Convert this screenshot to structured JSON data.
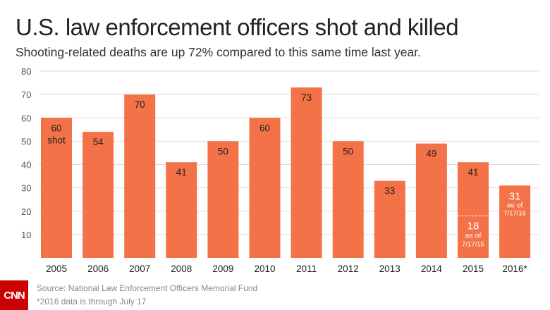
{
  "title": "U.S. law enforcement officers shot and killed",
  "subtitle": "Shooting-related deaths are up 72% compared to this same time last year.",
  "source": "Source: National Law Enforcement Officers Memorial Fund",
  "note": "*2016 data is through July 17",
  "logo": "CNN",
  "colors": {
    "bar": "#f47247",
    "logo": "#cc0000"
  },
  "chart_data": {
    "type": "bar",
    "categories": [
      "2005",
      "2006",
      "2007",
      "2008",
      "2009",
      "2010",
      "2011",
      "2012",
      "2013",
      "2014",
      "2015",
      "2016*"
    ],
    "values": [
      60,
      54,
      70,
      41,
      50,
      60,
      73,
      50,
      33,
      49,
      41,
      31
    ],
    "data_labels": [
      "60",
      "54",
      "70",
      "41",
      "50",
      "60",
      "73",
      "50",
      "33",
      "49",
      "41",
      "31"
    ],
    "ylim": [
      0,
      80
    ],
    "yticks": [
      10,
      20,
      30,
      40,
      50,
      60,
      70,
      80
    ],
    "grid": true,
    "annotations": [
      {
        "category": "2005",
        "text": "shot"
      },
      {
        "category": "2015",
        "value": 18,
        "text": "18",
        "sub": "as of",
        "date": "7/17/15",
        "marker": "dashed line"
      },
      {
        "category": "2016*",
        "text": "as of",
        "date": "7/17/16"
      }
    ]
  }
}
